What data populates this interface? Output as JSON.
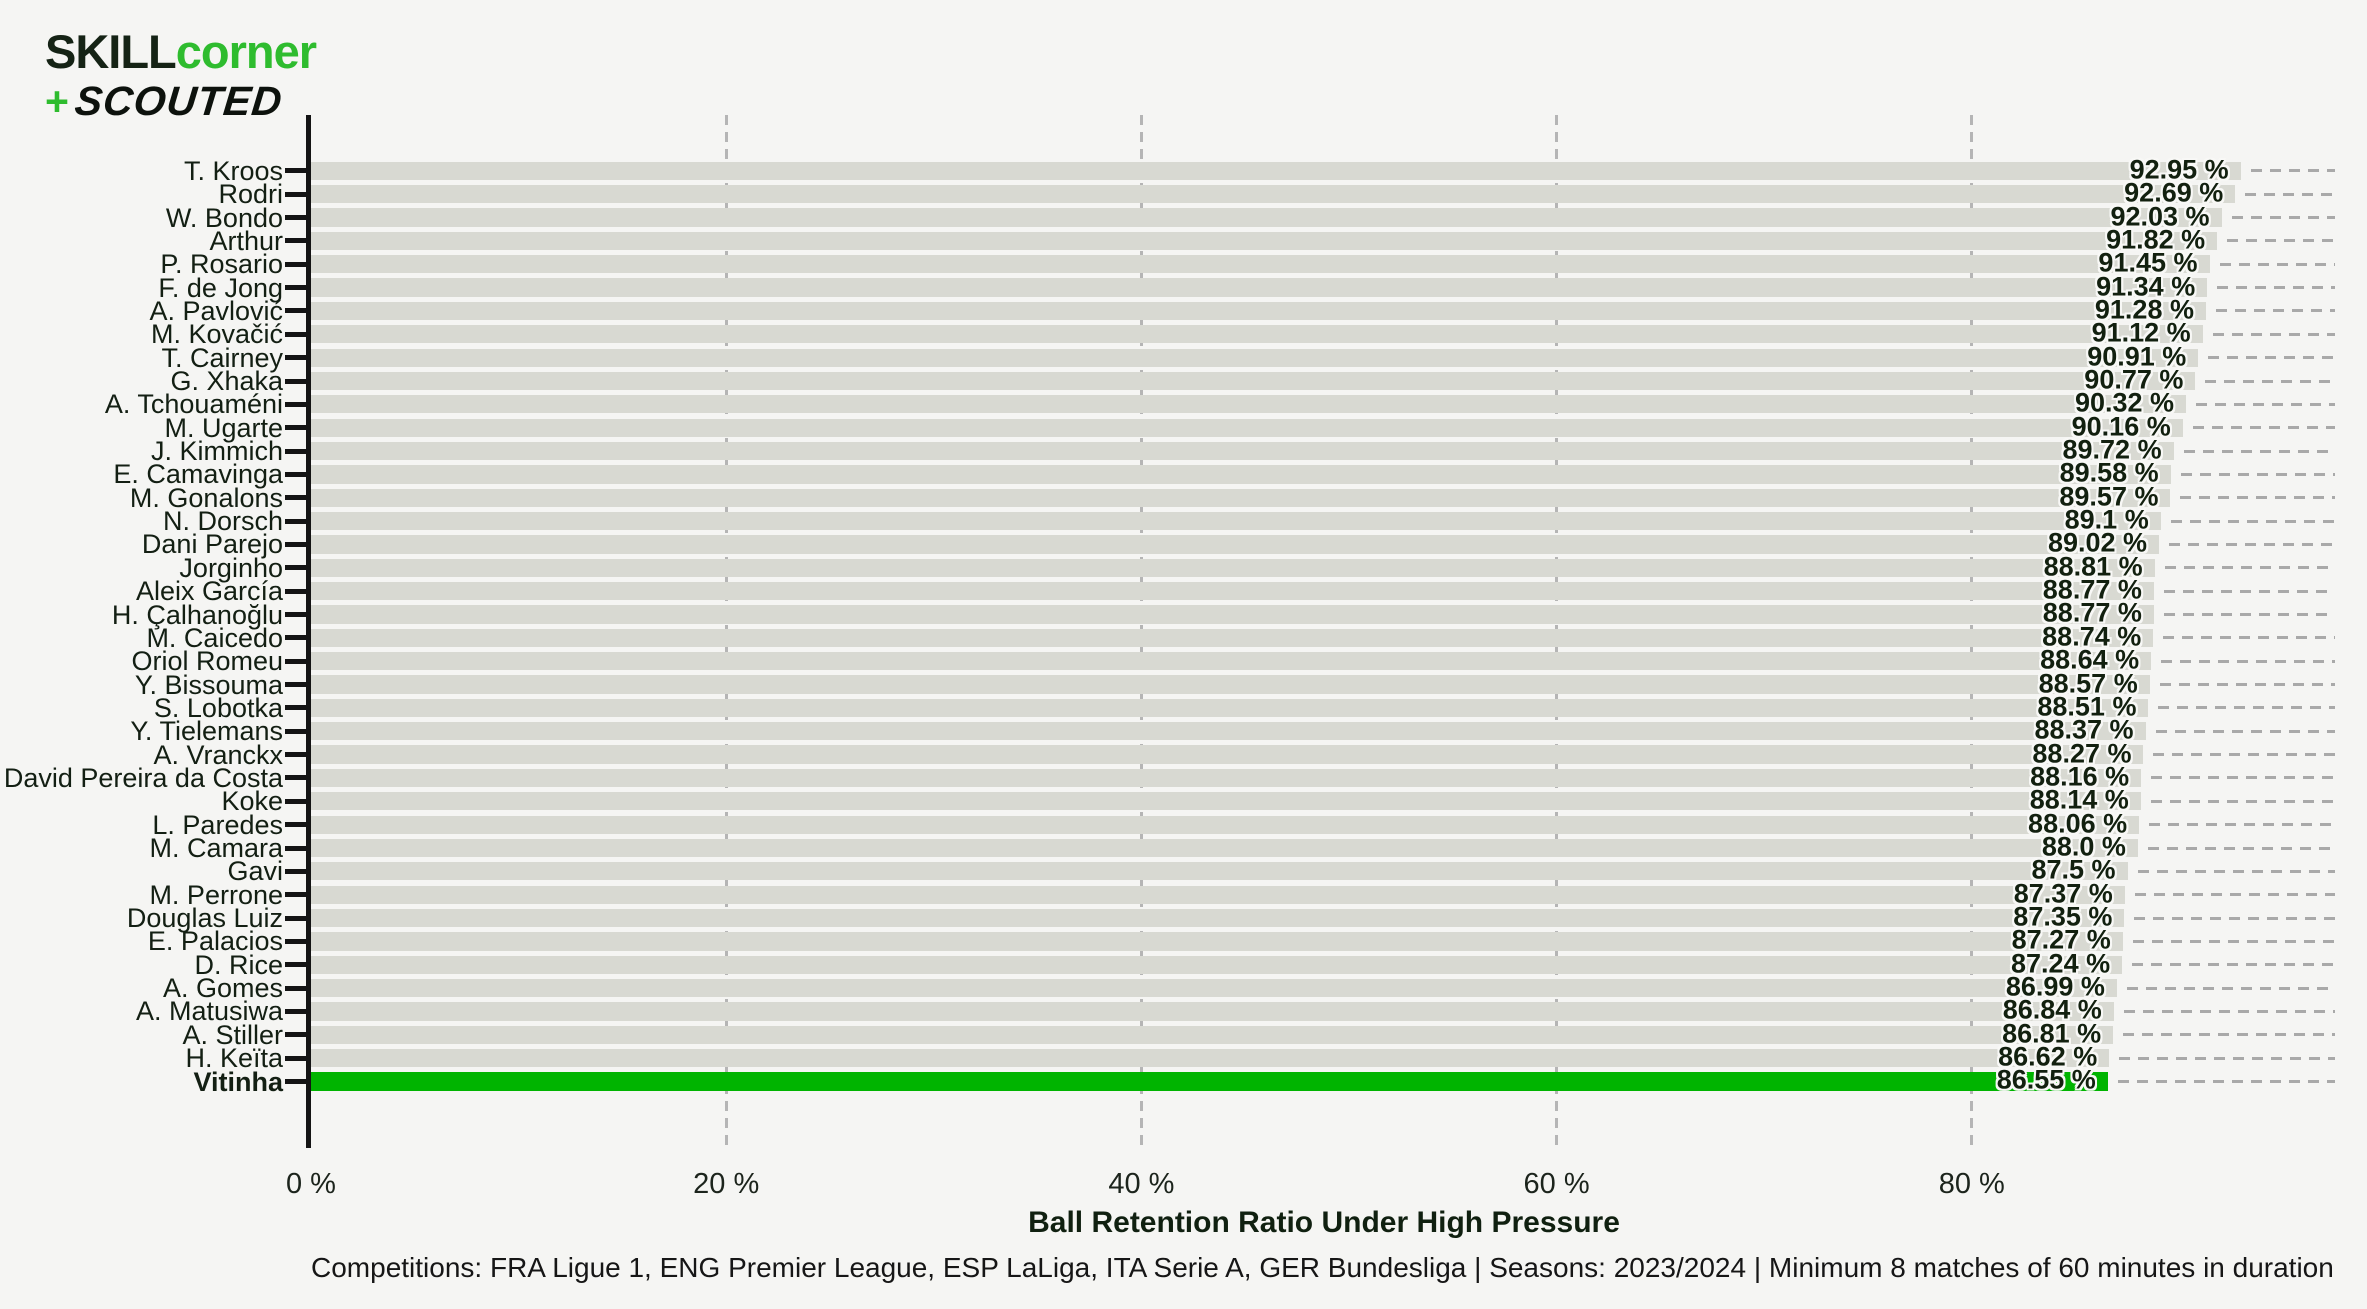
{
  "logo": {
    "line1_dark": "SKILL",
    "line1_green": "corner",
    "line2_plus": "+",
    "line2_text": "SCOUTED"
  },
  "chart_data": {
    "type": "bar",
    "orientation": "horizontal",
    "xlabel": "Ball Retention Ratio Under High Pressure",
    "x_ticks": [
      "0 %",
      "20 %",
      "40 %",
      "60 %",
      "80 %"
    ],
    "x_tick_values": [
      0,
      20,
      40,
      60,
      80
    ],
    "xlim": [
      0,
      97.6
    ],
    "grid": "dashed vertical at ticks, dashed leader lines right of bars",
    "legend": "none",
    "highlighted_player": "Vitinha",
    "colors": {
      "background": "#f5f5f3",
      "bar": "#d8d9d2",
      "highlight": "#00b400",
      "text": "#131f13",
      "leader_dash": "#a9a9a9",
      "grid_dash": "#b5b5b5",
      "logo_green": "#2ebc2e"
    },
    "players": [
      {
        "name": "T. Kroos",
        "value": 92.95,
        "label": "92.95 %"
      },
      {
        "name": "Rodri",
        "value": 92.69,
        "label": "92.69 %"
      },
      {
        "name": "W. Bondo",
        "value": 92.03,
        "label": "92.03 %"
      },
      {
        "name": "Arthur",
        "value": 91.82,
        "label": "91.82 %"
      },
      {
        "name": "P. Rosario",
        "value": 91.45,
        "label": "91.45 %"
      },
      {
        "name": "F. de Jong",
        "value": 91.34,
        "label": "91.34 %"
      },
      {
        "name": "A. Pavlović",
        "value": 91.28,
        "label": "91.28 %"
      },
      {
        "name": "M. Kovačić",
        "value": 91.12,
        "label": "91.12 %"
      },
      {
        "name": "T. Cairney",
        "value": 90.91,
        "label": "90.91 %"
      },
      {
        "name": "G. Xhaka",
        "value": 90.77,
        "label": "90.77 %"
      },
      {
        "name": "A. Tchouaméni",
        "value": 90.32,
        "label": "90.32 %"
      },
      {
        "name": "M. Ugarte",
        "value": 90.16,
        "label": "90.16 %"
      },
      {
        "name": "J. Kimmich",
        "value": 89.72,
        "label": "89.72 %"
      },
      {
        "name": "E. Camavinga",
        "value": 89.58,
        "label": "89.58 %"
      },
      {
        "name": "M. Gonalons",
        "value": 89.57,
        "label": "89.57 %"
      },
      {
        "name": "N. Dorsch",
        "value": 89.1,
        "label": "89.1 %"
      },
      {
        "name": "Dani Parejo",
        "value": 89.02,
        "label": "89.02 %"
      },
      {
        "name": "Jorginho",
        "value": 88.81,
        "label": "88.81 %"
      },
      {
        "name": "Aleix García",
        "value": 88.77,
        "label": "88.77 %"
      },
      {
        "name": "H. Çalhanoğlu",
        "value": 88.77,
        "label": "88.77 %"
      },
      {
        "name": "M. Caicedo",
        "value": 88.74,
        "label": "88.74 %"
      },
      {
        "name": "Oriol Romeu",
        "value": 88.64,
        "label": "88.64 %"
      },
      {
        "name": "Y. Bissouma",
        "value": 88.57,
        "label": "88.57 %"
      },
      {
        "name": "S. Lobotka",
        "value": 88.51,
        "label": "88.51 %"
      },
      {
        "name": "Y. Tielemans",
        "value": 88.37,
        "label": "88.37 %"
      },
      {
        "name": "A. Vranckx",
        "value": 88.27,
        "label": "88.27 %"
      },
      {
        "name": "David Pereira da Costa",
        "value": 88.16,
        "label": "88.16 %"
      },
      {
        "name": "Koke",
        "value": 88.14,
        "label": "88.14 %"
      },
      {
        "name": "L. Paredes",
        "value": 88.06,
        "label": "88.06 %"
      },
      {
        "name": "M. Camara",
        "value": 88.0,
        "label": "88.0 %"
      },
      {
        "name": "Gavi",
        "value": 87.5,
        "label": "87.5 %"
      },
      {
        "name": "M. Perrone",
        "value": 87.37,
        "label": "87.37 %"
      },
      {
        "name": "Douglas Luiz",
        "value": 87.35,
        "label": "87.35 %"
      },
      {
        "name": "E. Palacios",
        "value": 87.27,
        "label": "87.27 %"
      },
      {
        "name": "D. Rice",
        "value": 87.24,
        "label": "87.24 %"
      },
      {
        "name": "A. Gomes",
        "value": 86.99,
        "label": "86.99 %"
      },
      {
        "name": "A. Matusiwa",
        "value": 86.84,
        "label": "86.84 %"
      },
      {
        "name": "A. Stiller",
        "value": 86.81,
        "label": "86.81 %"
      },
      {
        "name": "H. Keïta",
        "value": 86.62,
        "label": "86.62 %"
      },
      {
        "name": "Vitinha",
        "value": 86.55,
        "label": "86.55 %",
        "highlight": true
      }
    ]
  },
  "footer": {
    "text": "Competitions: FRA Ligue 1, ENG Premier League, ESP LaLiga, ITA Serie A, GER Bundesliga | Seasons: 2023/2024 | Minimum 8 matches of 60 minutes in duration"
  }
}
